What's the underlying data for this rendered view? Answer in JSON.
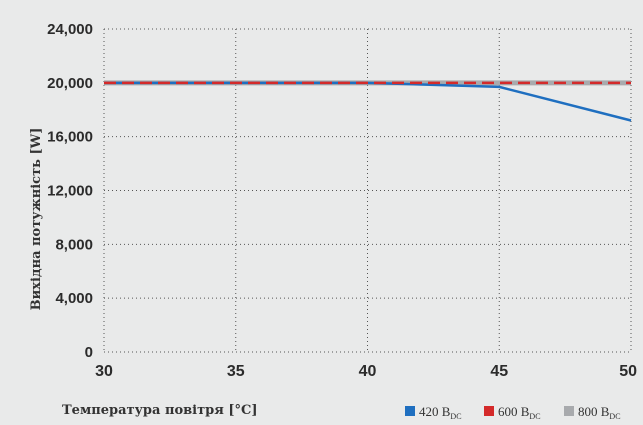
{
  "chart_data": {
    "type": "line",
    "xlabel": "Температура повітря [°C]",
    "ylabel": "Вихідна потужність [W]",
    "xlim": [
      30,
      50
    ],
    "ylim": [
      0,
      24000
    ],
    "x_ticks": [
      "30",
      "35",
      "40",
      "45",
      "50"
    ],
    "y_ticks": [
      "0",
      "4,000",
      "8,000",
      "12,000",
      "16,000",
      "20,000",
      "24,000"
    ],
    "grid": true,
    "legend_placement": "bottom-right",
    "series": [
      {
        "name": "420 B",
        "name_sub": "DC",
        "color": "#1f6fc0",
        "style": "solid",
        "x": [
          30,
          40,
          45,
          50
        ],
        "y": [
          20000,
          20000,
          19700,
          17200
        ]
      },
      {
        "name": "600 B",
        "name_sub": "DC",
        "color": "#d42a2a",
        "style": "dashed",
        "x": [
          30,
          40,
          45,
          50
        ],
        "y": [
          20000,
          20000,
          20000,
          20000
        ]
      },
      {
        "name": "800 B",
        "name_sub": "DC",
        "color": "#a8aaad",
        "style": "solid",
        "x": [
          30,
          40,
          45,
          50
        ],
        "y": [
          20000,
          20000,
          20000,
          20000
        ]
      }
    ]
  }
}
